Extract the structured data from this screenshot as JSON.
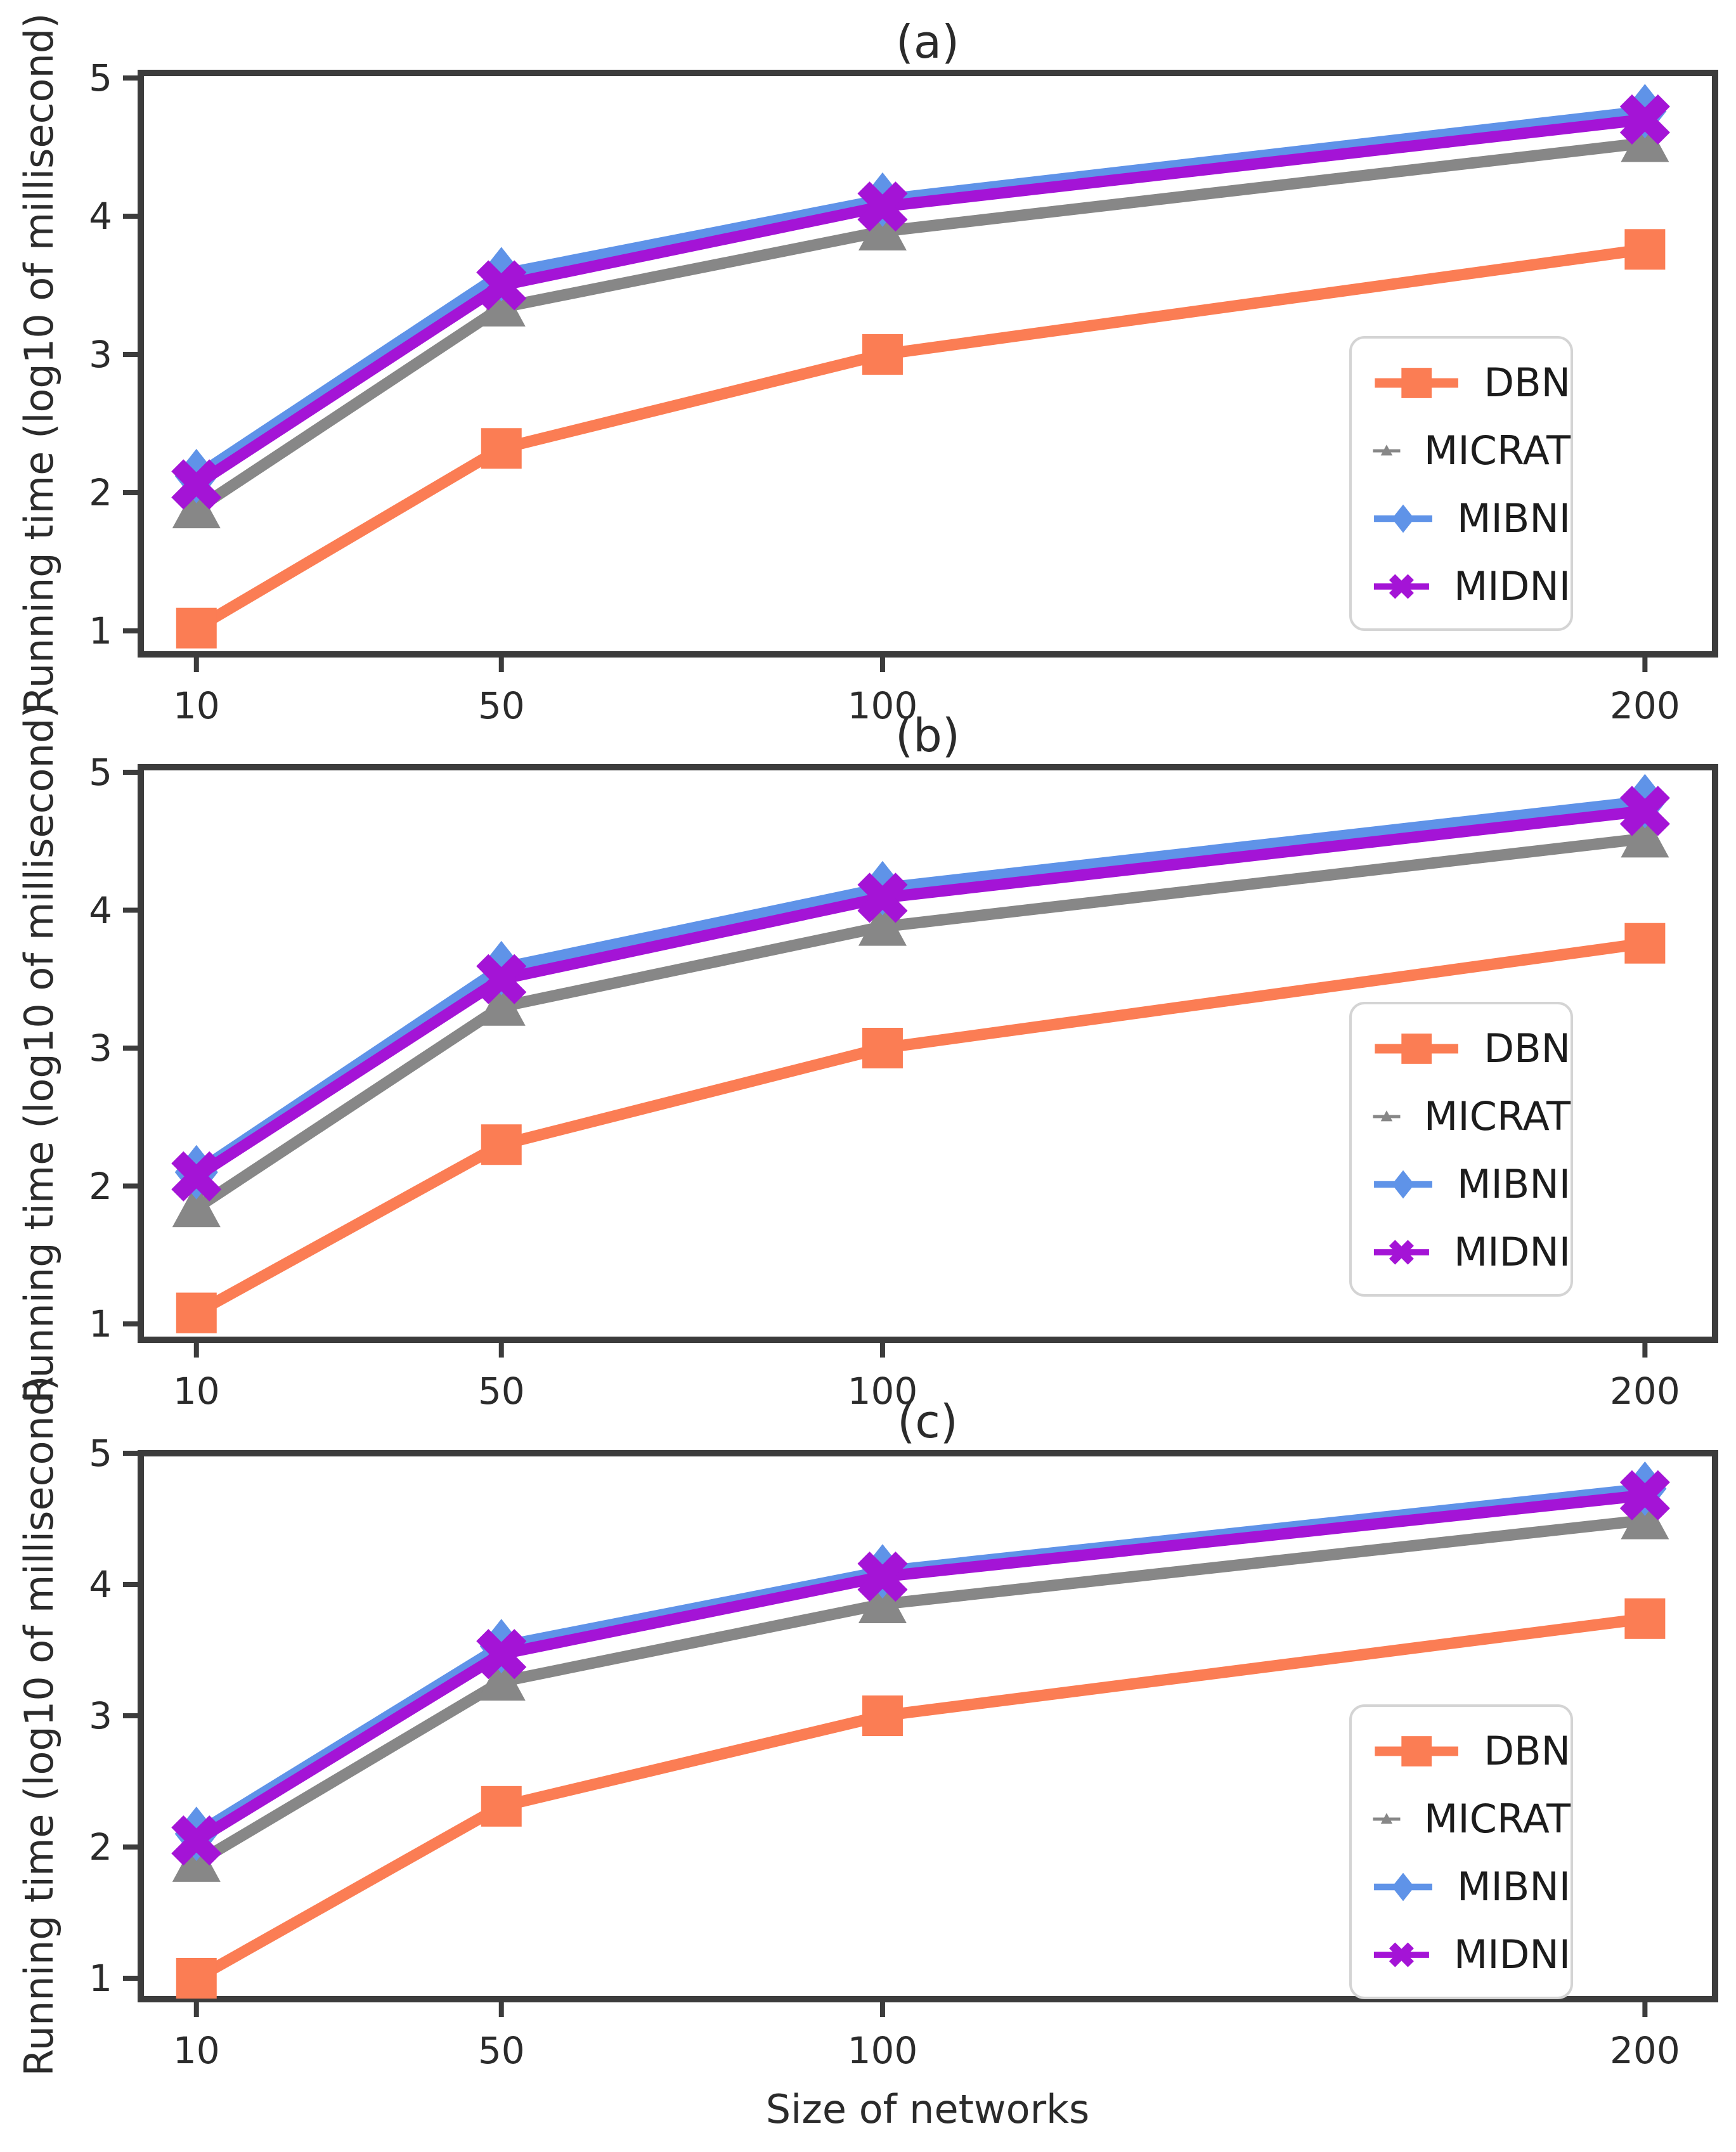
{
  "figure": {
    "ylabel": "Running time (log10 of millisecond)",
    "xlabel": "Size of networks",
    "y_tick_labels": [
      "1",
      "2",
      "3",
      "4",
      "5"
    ],
    "x_tick_labels": [
      "10",
      "50",
      "100",
      "200"
    ],
    "background_color": "#ffffff",
    "spine_color": "#3c3c3c",
    "text_color": "#2b2b2b"
  },
  "legend": {
    "position": "lower right",
    "items": [
      {
        "label": "DBN",
        "marker": "square",
        "color": "#fb7d54"
      },
      {
        "label": "MICRAT",
        "marker": "triangle",
        "color": "#878787"
      },
      {
        "label": "MIBNI",
        "marker": "diamond",
        "color": "#5f93e8"
      },
      {
        "label": "MIDNI",
        "marker": "x",
        "color": "#a414d6"
      }
    ]
  },
  "chart_data": [
    {
      "type": "line",
      "title": "(a)",
      "x": [
        10,
        50,
        100,
        200
      ],
      "xlim": [
        2.7,
        209.2
      ],
      "ylim": [
        0.83,
        5.05
      ],
      "x_ticks": [
        10,
        50,
        100,
        200
      ],
      "y_ticks": [
        1,
        2,
        3,
        4,
        5
      ],
      "grid": false,
      "legend_position": "lower right",
      "series": [
        {
          "name": "DBN",
          "marker": "square",
          "color": "#fb7d54",
          "values": [
            1.02,
            2.32,
            3.0,
            3.76
          ]
        },
        {
          "name": "MICRAT",
          "marker": "triangle",
          "color": "#878787",
          "values": [
            1.88,
            3.34,
            3.89,
            4.53
          ]
        },
        {
          "name": "MIBNI",
          "marker": "diamond",
          "color": "#5f93e8",
          "values": [
            2.12,
            3.58,
            4.12,
            4.76
          ]
        },
        {
          "name": "MIDNI",
          "marker": "x",
          "color": "#a414d6",
          "values": [
            2.06,
            3.5,
            4.07,
            4.7
          ]
        }
      ]
    },
    {
      "type": "line",
      "title": "(b)",
      "x": [
        10,
        50,
        100,
        200
      ],
      "xlim": [
        2.7,
        209.2
      ],
      "ylim": [
        0.83,
        5.05
      ],
      "x_ticks": [
        10,
        50,
        100,
        200
      ],
      "y_ticks": [
        1,
        2,
        3,
        4,
        5
      ],
      "grid": false,
      "legend_position": "lower right",
      "series": [
        {
          "name": "DBN",
          "marker": "square",
          "color": "#fb7d54",
          "values": [
            1.08,
            2.3,
            3.0,
            3.76
          ]
        },
        {
          "name": "MICRAT",
          "marker": "triangle",
          "color": "#878787",
          "values": [
            1.84,
            3.3,
            3.88,
            4.52
          ]
        },
        {
          "name": "MIBNI",
          "marker": "diamond",
          "color": "#5f93e8",
          "values": [
            2.1,
            3.58,
            4.16,
            4.79
          ]
        },
        {
          "name": "MIDNI",
          "marker": "x",
          "color": "#a414d6",
          "values": [
            2.07,
            3.5,
            4.09,
            4.72
          ]
        }
      ]
    },
    {
      "type": "line",
      "title": "(c)",
      "x": [
        10,
        50,
        100,
        200
      ],
      "xlim": [
        2.7,
        209.2
      ],
      "ylim": [
        0.83,
        5.05
      ],
      "x_ticks": [
        10,
        50,
        100,
        200
      ],
      "y_ticks": [
        1,
        2,
        3,
        4,
        5
      ],
      "grid": false,
      "legend_position": "lower right",
      "series": [
        {
          "name": "DBN",
          "marker": "square",
          "color": "#fb7d54",
          "values": [
            1.0,
            2.31,
            3.0,
            3.74
          ]
        },
        {
          "name": "MICRAT",
          "marker": "triangle",
          "color": "#878787",
          "values": [
            1.88,
            3.26,
            3.85,
            4.49
          ]
        },
        {
          "name": "MIBNI",
          "marker": "diamond",
          "color": "#5f93e8",
          "values": [
            2.1,
            3.53,
            4.1,
            4.73
          ]
        },
        {
          "name": "MIDNI",
          "marker": "x",
          "color": "#a414d6",
          "values": [
            2.05,
            3.47,
            4.06,
            4.68
          ]
        }
      ]
    }
  ]
}
